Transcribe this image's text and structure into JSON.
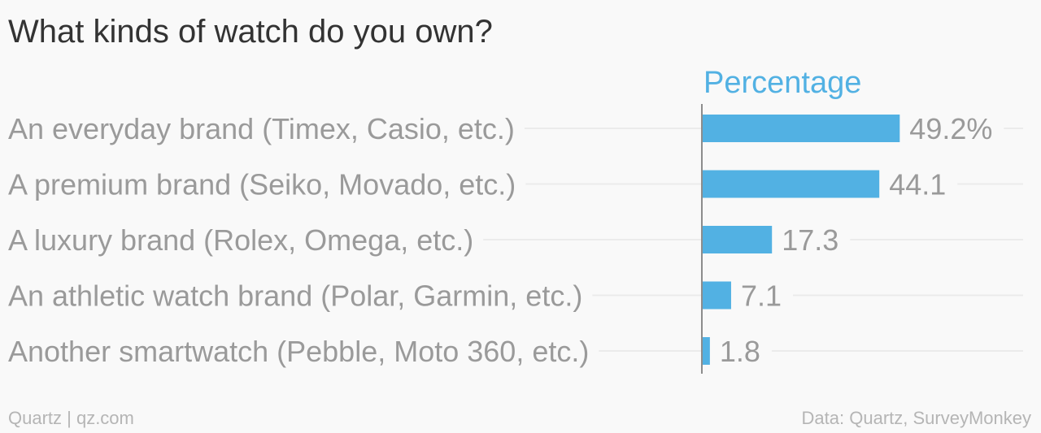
{
  "chart_data": {
    "type": "bar",
    "orientation": "horizontal",
    "title": "What kinds of watch do you own?",
    "series_label": "Percentage",
    "categories": [
      "An everyday brand (Timex, Casio, etc.)",
      "A premium brand (Seiko, Movado, etc.)",
      "A luxury brand (Rolex, Omega, etc.)",
      "An athletic watch brand (Polar, Garmin, etc.)",
      "Another smartwatch (Pebble, Moto 360, etc.)"
    ],
    "values": [
      49.2,
      44.1,
      17.3,
      7.1,
      1.8
    ],
    "value_labels": [
      "49.2%",
      "44.1",
      "17.3",
      "7.1",
      "1.8"
    ],
    "xlim": [
      0,
      80
    ],
    "grid": false,
    "colors": {
      "bar": "#52b1e3",
      "title": "#333333",
      "category_label": "#9a9a9a",
      "value_label": "#9a9a9a",
      "series_label": "#52b1e3",
      "footer": "#b5b5b5",
      "guide_line": "#ebebeb",
      "axis_line": "#8c8c8c",
      "background": "#f9f9f9"
    }
  },
  "footer": {
    "left": "Quartz | qz.com",
    "right": "Data: Quartz, SurveyMonkey"
  }
}
